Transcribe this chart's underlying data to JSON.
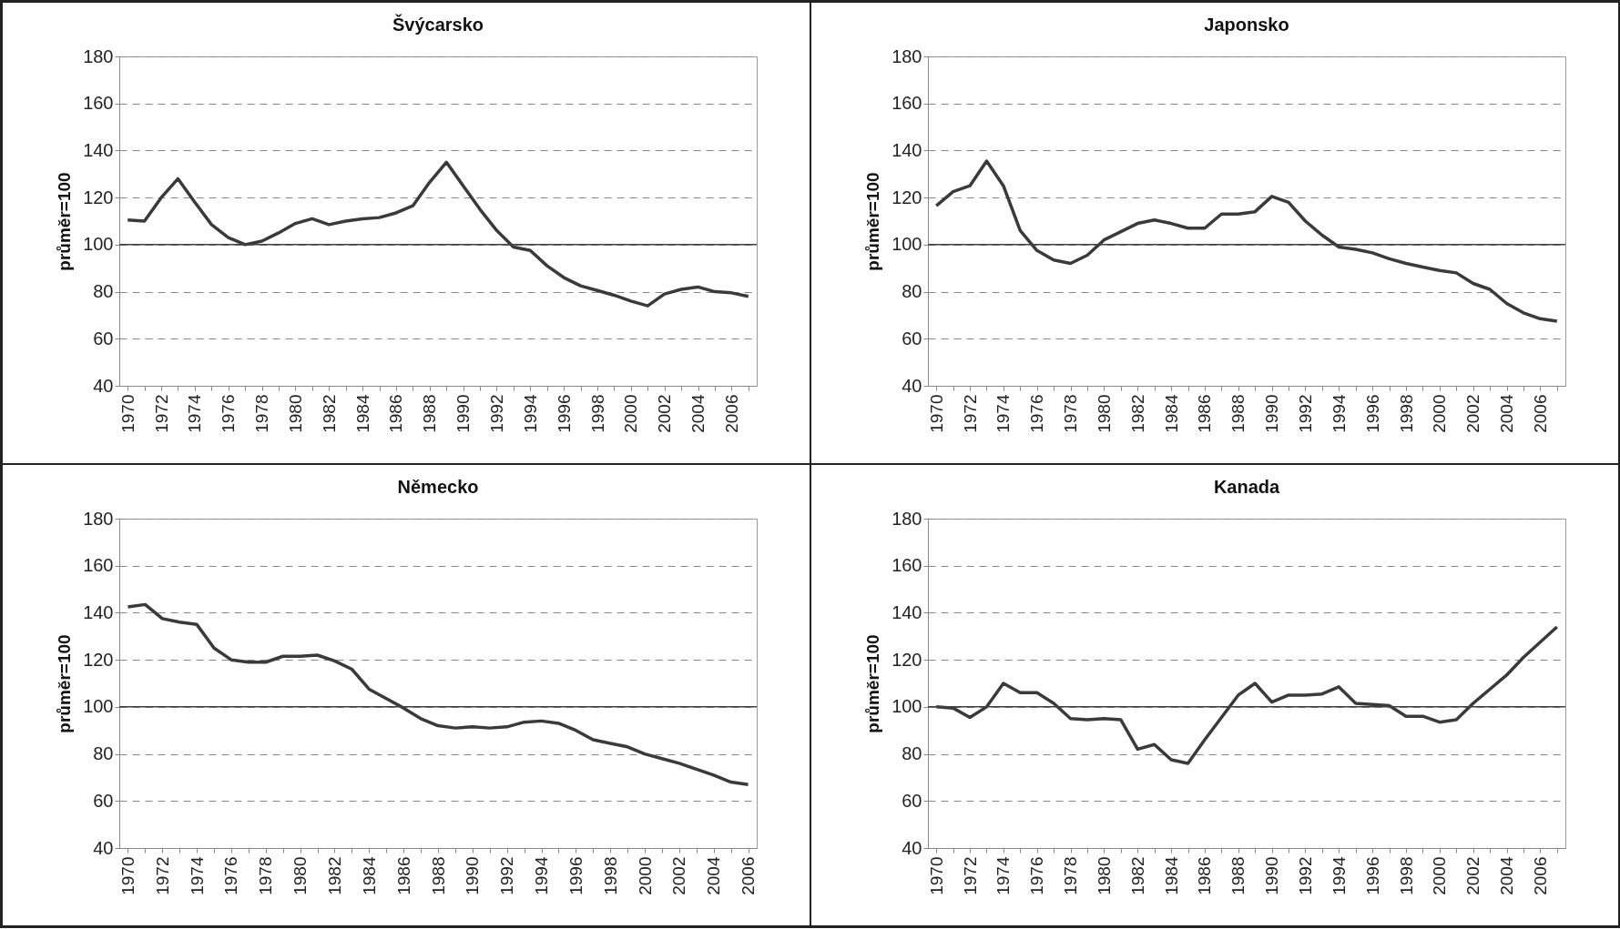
{
  "chart_data": [
    {
      "type": "line",
      "title": "Švýcarsko",
      "ylabel": "průměr=100",
      "categories": [
        "1970",
        null,
        "1972",
        null,
        "1974",
        null,
        "1976",
        null,
        "1978",
        null,
        "1980",
        null,
        "1982",
        null,
        "1984",
        null,
        "1986",
        null,
        "1988",
        null,
        "1990",
        null,
        "1992",
        null,
        "1994",
        null,
        "1996",
        null,
        "1998",
        null,
        "2000",
        null,
        "2002",
        null,
        "2004",
        null,
        "2006",
        null
      ],
      "series": [
        {
          "color": "#3a3a3a",
          "values": [
            110.5,
            110,
            120,
            128,
            118,
            108.5,
            103,
            100,
            101.5,
            105,
            109,
            111,
            108.5,
            110,
            111,
            111.5,
            113.5,
            116.5,
            126.5,
            135,
            125,
            115,
            106,
            99,
            97.5,
            91,
            86,
            82.5,
            80.5,
            78.5,
            76,
            74,
            79,
            81,
            82,
            80,
            79.5,
            78
          ]
        }
      ],
      "ylim": [
        40,
        180
      ],
      "yticks": [
        40,
        60,
        80,
        100,
        120,
        140,
        160,
        180
      ],
      "grid": "y",
      "ref_lines": [
        {
          "axis": "y",
          "value": 100,
          "color": "#404040",
          "line_style": "solid"
        }
      ]
    },
    {
      "type": "line",
      "title": "Japonsko",
      "ylabel": "průměr=100",
      "categories": [
        "1970",
        null,
        "1972",
        null,
        "1974",
        null,
        "1976",
        null,
        "1978",
        null,
        "1980",
        null,
        "1982",
        null,
        "1984",
        null,
        "1986",
        null,
        "1988",
        null,
        "1990",
        null,
        "1992",
        null,
        "1994",
        null,
        "1996",
        null,
        "1998",
        null,
        "2000",
        null,
        "2002",
        null,
        "2004",
        null,
        "2006",
        null
      ],
      "series": [
        {
          "color": "#3a3a3a",
          "values": [
            116.5,
            122.5,
            125,
            135.5,
            125,
            106,
            97.5,
            93.5,
            92,
            95.5,
            102,
            105.5,
            109,
            110.5,
            109,
            107,
            107,
            113,
            113,
            114,
            120.5,
            118,
            110,
            104,
            99,
            98,
            96.5,
            94,
            92,
            90.5,
            89,
            88,
            83.5,
            81,
            75,
            71,
            68.5,
            67.5
          ]
        }
      ],
      "ylim": [
        40,
        180
      ],
      "yticks": [
        40,
        60,
        80,
        100,
        120,
        140,
        160,
        180
      ],
      "grid": "y",
      "ref_lines": [
        {
          "axis": "y",
          "value": 100,
          "color": "#404040",
          "line_style": "solid"
        }
      ]
    },
    {
      "type": "line",
      "title": "Německo",
      "ylabel": "průměr=100",
      "categories": [
        "1970",
        null,
        "1972",
        null,
        "1974",
        null,
        "1976",
        null,
        "1978",
        null,
        "1980",
        null,
        "1982",
        null,
        "1984",
        null,
        "1986",
        null,
        "1988",
        null,
        "1990",
        null,
        "1992",
        null,
        "1994",
        null,
        "1996",
        null,
        "1998",
        null,
        "2000",
        null,
        "2002",
        null,
        "2004",
        null,
        "2006"
      ],
      "series": [
        {
          "color": "#3a3a3a",
          "values": [
            142.5,
            143.5,
            137.5,
            136,
            135,
            125,
            120,
            119,
            119,
            121.5,
            121.5,
            122,
            119.5,
            116,
            107.5,
            103.5,
            99.5,
            95,
            92,
            91,
            91.5,
            91,
            91.5,
            93.5,
            94,
            93,
            90,
            86,
            84.5,
            83,
            80,
            78,
            76,
            73.5,
            71,
            68,
            67
          ]
        }
      ],
      "ylim": [
        40,
        180
      ],
      "yticks": [
        40,
        60,
        80,
        100,
        120,
        140,
        160,
        180
      ],
      "grid": "y",
      "ref_lines": [
        {
          "axis": "y",
          "value": 100,
          "color": "#404040",
          "line_style": "solid"
        }
      ]
    },
    {
      "type": "line",
      "title": "Kanada",
      "ylabel": "průměr=100",
      "categories": [
        "1970",
        null,
        "1972",
        null,
        "1974",
        null,
        "1976",
        null,
        "1978",
        null,
        "1980",
        null,
        "1982",
        null,
        "1984",
        null,
        "1986",
        null,
        "1988",
        null,
        "1990",
        null,
        "1992",
        null,
        "1994",
        null,
        "1996",
        null,
        "1998",
        null,
        "2000",
        null,
        "2002",
        null,
        "2004",
        null,
        "2006",
        null
      ],
      "series": [
        {
          "color": "#3a3a3a",
          "values": [
            100,
            99.5,
            95.5,
            100,
            110,
            106,
            106,
            101.5,
            95,
            94.5,
            95,
            94.5,
            82,
            84,
            77.5,
            76,
            86,
            95.5,
            105,
            110,
            102,
            105,
            105,
            105.5,
            108.5,
            101.5,
            101,
            100.5,
            96,
            96,
            93.5,
            94.5,
            101.5,
            107.5,
            113.5,
            121,
            127.5,
            134
          ]
        }
      ],
      "ylim": [
        40,
        180
      ],
      "yticks": [
        40,
        60,
        80,
        100,
        120,
        140,
        160,
        180
      ],
      "grid": "y",
      "ref_lines": [
        {
          "axis": "y",
          "value": 100,
          "color": "#404040",
          "line_style": "solid"
        }
      ]
    }
  ]
}
